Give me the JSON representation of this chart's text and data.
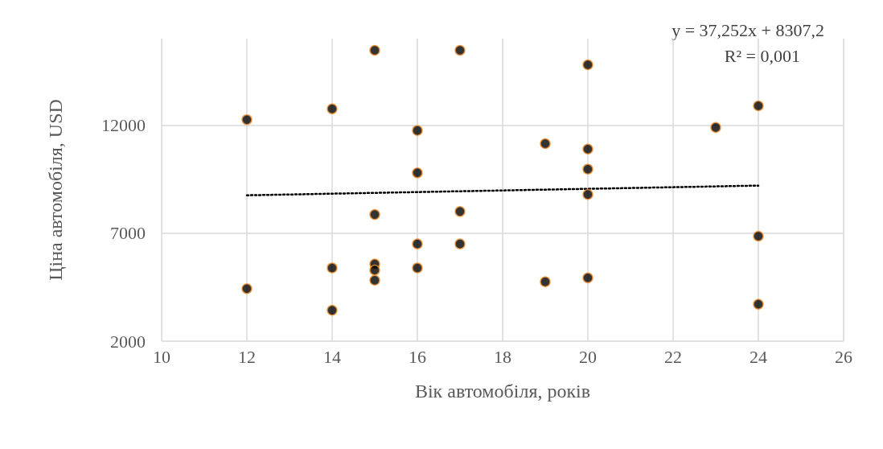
{
  "chart_data": {
    "type": "scatter",
    "xlabel": "Вік автомобіля, років",
    "ylabel": "Ціна автомобіля, USD",
    "x": [
      12,
      12,
      14,
      14,
      14,
      15,
      15,
      15,
      15,
      15,
      16,
      16,
      16,
      16,
      17,
      17,
      17,
      19,
      19,
      20,
      20,
      20,
      20,
      20,
      23,
      24,
      24,
      24
    ],
    "series": [
      {
        "color": "#000000",
        "values": [
          12250,
          4430,
          12750,
          5390,
          3430,
          15460,
          7860,
          5570,
          5290,
          4820,
          11750,
          9790,
          6500,
          5390,
          15460,
          8000,
          6500,
          11140,
          4750,
          14790,
          10890,
          9960,
          8790,
          4930,
          11890,
          12890,
          6860,
          3710
        ]
      },
      {
        "type": "line",
        "color": "#000000",
        "line_style": "dotted",
        "marker": "none",
        "x": [
          12,
          24
        ],
        "values": [
          8750,
          9200
        ]
      }
    ],
    "marker": "circle",
    "xlim": [
      10,
      26
    ],
    "xticks": [
      10,
      12,
      14,
      16,
      18,
      20,
      22,
      24,
      26
    ],
    "ylim": [
      2000,
      16000
    ],
    "yticks": [
      2000,
      7000,
      12000
    ],
    "grid": true,
    "annotations": [
      "y = 37,252x + 8307,2",
      "R² = 0,001"
    ]
  }
}
